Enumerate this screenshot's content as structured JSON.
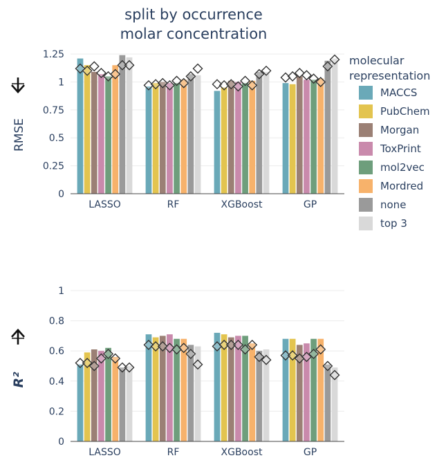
{
  "title_line1": "split by occurrence",
  "title_line2": "molar concentration",
  "legend": {
    "title_line1": "molecular",
    "title_line2": "representation",
    "items": [
      {
        "label": "MACCS",
        "color": "#6aa9b8"
      },
      {
        "label": "PubChem",
        "color": "#e3c44f"
      },
      {
        "label": "Morgan",
        "color": "#9b8075"
      },
      {
        "label": "ToxPrint",
        "color": "#c98aac"
      },
      {
        "label": "mol2vec",
        "color": "#6e9e7c"
      },
      {
        "label": "Mordred",
        "color": "#f7b26b"
      },
      {
        "label": "none",
        "color": "#9a9a9a"
      },
      {
        "label": "top 3",
        "color": "#d9d9d9"
      }
    ]
  },
  "chart_data": [
    {
      "type": "bar",
      "ylabel": "RMSE",
      "direction": "down",
      "categories": [
        "LASSO",
        "RF",
        "XGBoost",
        "GP"
      ],
      "ylim": [
        0,
        1.3
      ],
      "yticks": [
        0,
        0.25,
        0.5,
        0.75,
        1,
        1.25
      ],
      "ytick_labels": [
        "0",
        "0.25",
        "0.5",
        "0.75",
        "1",
        "1.25"
      ],
      "series": [
        {
          "name": "MACCS",
          "bars": [
            1.21,
            0.96,
            0.92,
            0.99
          ],
          "markers": [
            1.12,
            0.97,
            0.98,
            1.04
          ]
        },
        {
          "name": "PubChem",
          "bars": [
            1.15,
            0.99,
            0.95,
            0.98
          ],
          "markers": [
            1.1,
            0.98,
            0.97,
            1.05
          ]
        },
        {
          "name": "Morgan",
          "bars": [
            1.09,
            1.0,
            1.01,
            1.05
          ],
          "markers": [
            1.14,
            0.99,
            0.98,
            1.08
          ]
        },
        {
          "name": "ToxPrint",
          "bars": [
            1.07,
            0.99,
            1.0,
            1.02
          ],
          "markers": [
            1.08,
            0.97,
            0.96,
            1.06
          ]
        },
        {
          "name": "mol2vec",
          "bars": [
            1.05,
            0.99,
            0.99,
            1.02
          ],
          "markers": [
            1.05,
            1.01,
            1.01,
            1.03
          ]
        },
        {
          "name": "Mordred",
          "bars": [
            1.15,
            1.02,
            1.01,
            1.03
          ],
          "markers": [
            1.07,
            0.99,
            0.97,
            1.0
          ]
        },
        {
          "name": "none",
          "bars": [
            1.24,
            1.07,
            1.09,
            1.19
          ],
          "markers": [
            1.15,
            1.05,
            1.07,
            1.14
          ]
        },
        {
          "name": "top 3",
          "bars": [
            1.22,
            1.06,
            1.09,
            1.21
          ],
          "markers": [
            1.15,
            1.12,
            1.1,
            1.2
          ]
        }
      ]
    },
    {
      "type": "bar",
      "ylabel": "R²",
      "direction": "up",
      "categories": [
        "LASSO",
        "RF",
        "XGBoost",
        "GP"
      ],
      "ylim": [
        0,
        1
      ],
      "yticks": [
        0,
        0.2,
        0.4,
        0.6,
        0.8,
        1
      ],
      "ytick_labels": [
        "0",
        "0.2",
        "0.4",
        "0.6",
        "0.8",
        "1"
      ],
      "series": [
        {
          "name": "MACCS",
          "bars": [
            0.51,
            0.71,
            0.72,
            0.68
          ],
          "markers": [
            0.52,
            0.64,
            0.63,
            0.57
          ]
        },
        {
          "name": "PubChem",
          "bars": [
            0.59,
            0.69,
            0.71,
            0.68
          ],
          "markers": [
            0.52,
            0.63,
            0.64,
            0.57
          ]
        },
        {
          "name": "Morgan",
          "bars": [
            0.61,
            0.7,
            0.69,
            0.64
          ],
          "markers": [
            0.5,
            0.63,
            0.64,
            0.55
          ]
        },
        {
          "name": "ToxPrint",
          "bars": [
            0.6,
            0.71,
            0.7,
            0.65
          ],
          "markers": [
            0.55,
            0.62,
            0.64,
            0.56
          ]
        },
        {
          "name": "mol2vec",
          "bars": [
            0.62,
            0.68,
            0.7,
            0.68
          ],
          "markers": [
            0.58,
            0.61,
            0.61,
            0.58
          ]
        },
        {
          "name": "Mordred",
          "bars": [
            0.56,
            0.68,
            0.65,
            0.68
          ],
          "markers": [
            0.55,
            0.62,
            0.64,
            0.61
          ]
        },
        {
          "name": "none",
          "bars": [
            0.49,
            0.64,
            0.6,
            0.51
          ],
          "markers": [
            0.49,
            0.58,
            0.56,
            0.5
          ]
        },
        {
          "name": "top 3",
          "bars": [
            0.5,
            0.63,
            0.61,
            0.49
          ],
          "markers": [
            0.49,
            0.51,
            0.54,
            0.44
          ]
        }
      ]
    }
  ]
}
